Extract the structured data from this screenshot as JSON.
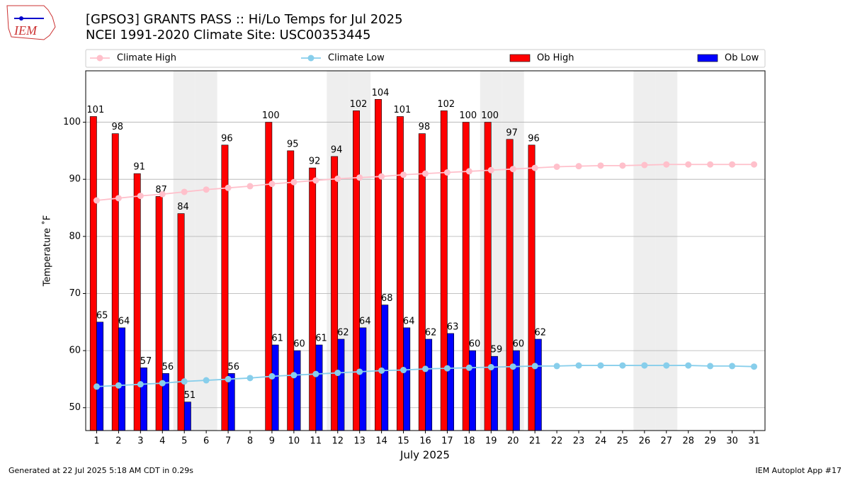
{
  "chart_data": {
    "type": "bar",
    "title": "[GPSO3] GRANTS PASS :: Hi/Lo Temps for Jul 2025",
    "subtitle": "NCEI 1991-2020 Climate Site: USC00353445",
    "xlabel": "July 2025",
    "ylabel": "Temperature ˚F",
    "logo": "IEM",
    "footer_left": "Generated at 22 Jul 2025 5:18 AM CDT in 0.29s",
    "footer_right": "IEM Autoplot App #17",
    "x": [
      1,
      2,
      3,
      4,
      5,
      6,
      7,
      8,
      9,
      10,
      11,
      12,
      13,
      14,
      15,
      16,
      17,
      18,
      19,
      20,
      21,
      22,
      23,
      24,
      25,
      26,
      27,
      28,
      29,
      30,
      31
    ],
    "xlim": [
      0.5,
      31.5
    ],
    "xticks": [
      1,
      2,
      3,
      4,
      5,
      6,
      7,
      8,
      9,
      10,
      11,
      12,
      13,
      14,
      15,
      16,
      17,
      18,
      19,
      20,
      21,
      22,
      23,
      24,
      25,
      26,
      27,
      28,
      29,
      30,
      31
    ],
    "ylim": [
      46,
      109
    ],
    "yticks": [
      50,
      60,
      70,
      80,
      90,
      100
    ],
    "grid": true,
    "legend": "top",
    "shaded_days": [
      5,
      6,
      12,
      13,
      19,
      20,
      26,
      27
    ],
    "series": [
      {
        "name": "Climate High",
        "type": "line",
        "color": "#ffc0cb",
        "values": [
          86.3,
          86.7,
          87.1,
          87.4,
          87.8,
          88.2,
          88.5,
          88.8,
          89.2,
          89.5,
          89.8,
          90.1,
          90.3,
          90.5,
          90.8,
          91.0,
          91.2,
          91.4,
          91.6,
          91.8,
          92.0,
          92.2,
          92.3,
          92.4,
          92.4,
          92.5,
          92.6,
          92.6,
          92.6,
          92.6,
          92.6
        ]
      },
      {
        "name": "Climate Low",
        "type": "line",
        "color": "#87ceeb",
        "values": [
          53.7,
          53.9,
          54.1,
          54.3,
          54.6,
          54.8,
          55.0,
          55.2,
          55.5,
          55.7,
          55.9,
          56.1,
          56.3,
          56.5,
          56.6,
          56.8,
          56.9,
          57.0,
          57.1,
          57.2,
          57.3,
          57.3,
          57.4,
          57.4,
          57.4,
          57.4,
          57.4,
          57.4,
          57.3,
          57.3,
          57.2
        ]
      },
      {
        "name": "Ob High",
        "type": "bar",
        "color": "#ff0000",
        "values": [
          101,
          98,
          91,
          87,
          84,
          null,
          96,
          null,
          100,
          95,
          92,
          94,
          102,
          104,
          101,
          98,
          102,
          100,
          100,
          97,
          96,
          null,
          null,
          null,
          null,
          null,
          null,
          null,
          null,
          null,
          null
        ]
      },
      {
        "name": "Ob Low",
        "type": "bar",
        "color": "#0000ff",
        "values": [
          65,
          64,
          57,
          56,
          51,
          null,
          56,
          null,
          61,
          60,
          61,
          62,
          64,
          68,
          64,
          62,
          63,
          60,
          59,
          60,
          62,
          null,
          null,
          null,
          null,
          null,
          null,
          null,
          null,
          null,
          null
        ]
      }
    ]
  }
}
